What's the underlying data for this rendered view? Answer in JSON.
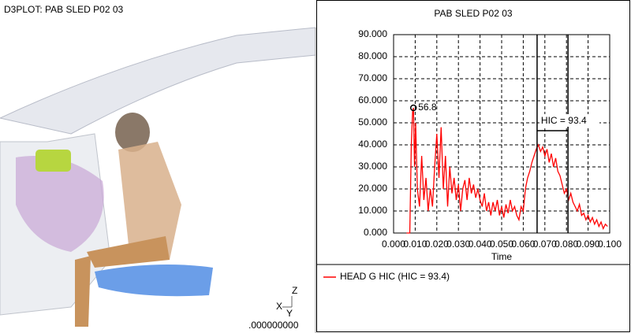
{
  "viewer": {
    "title": "D3PLOT: PAB SLED P02 03",
    "time": ".000000000",
    "axes": [
      "Z",
      "X",
      "Y"
    ]
  },
  "chart_data": {
    "type": "line",
    "title": "PAB SLED P02 03",
    "x_label": "Time",
    "x": [
      0.006,
      0.0075,
      0.0082,
      0.0088,
      0.0092,
      0.0097,
      0.0102,
      0.011,
      0.012,
      0.013,
      0.014,
      0.015,
      0.016,
      0.017,
      0.018,
      0.019,
      0.02,
      0.021,
      0.022,
      0.023,
      0.024,
      0.025,
      0.026,
      0.027,
      0.028,
      0.029,
      0.03,
      0.031,
      0.032,
      0.033,
      0.034,
      0.035,
      0.036,
      0.037,
      0.038,
      0.039,
      0.04,
      0.041,
      0.042,
      0.043,
      0.044,
      0.045,
      0.046,
      0.047,
      0.048,
      0.049,
      0.05,
      0.051,
      0.052,
      0.053,
      0.054,
      0.055,
      0.056,
      0.057,
      0.058,
      0.059,
      0.06,
      0.061,
      0.062,
      0.063,
      0.064,
      0.065,
      0.066,
      0.067,
      0.068,
      0.069,
      0.07,
      0.071,
      0.072,
      0.073,
      0.074,
      0.075,
      0.076,
      0.077,
      0.078,
      0.079,
      0.08,
      0.081,
      0.082,
      0.083,
      0.084,
      0.085,
      0.086,
      0.087,
      0.088,
      0.089,
      0.09,
      0.091,
      0.092,
      0.093,
      0.094,
      0.095,
      0.096,
      0.097,
      0.098,
      0.099
    ],
    "series": [
      {
        "name": "HEAD G HIC (HIC = 93.4)",
        "color": "#ff0000",
        "values": [
          0,
          0,
          40,
          55,
          56.8,
          30,
          50,
          20,
          12,
          35,
          15,
          25,
          10,
          20,
          12,
          30,
          45,
          25,
          48,
          20,
          35,
          12,
          30,
          18,
          25,
          15,
          22,
          10,
          20,
          24,
          15,
          25,
          18,
          22,
          16,
          20,
          15,
          12,
          18,
          10,
          14,
          8,
          14,
          10,
          15,
          8,
          12,
          7,
          13,
          9,
          15,
          10,
          12,
          8,
          6,
          12,
          10,
          20,
          25,
          28,
          32,
          35,
          38,
          40,
          37,
          39,
          35,
          38,
          32,
          36,
          30,
          34,
          28,
          26,
          22,
          18,
          20,
          15,
          18,
          14,
          12,
          10,
          13,
          8,
          9,
          6,
          8,
          5,
          7,
          4,
          6,
          3,
          5,
          2,
          4,
          3
        ]
      }
    ],
    "peak": {
      "x": 0.0092,
      "y": 56.8
    },
    "hic_annotation": "HIC = 93.4",
    "hic_window": [
      0.0664,
      0.0807
    ],
    "xlim": [
      0,
      0.1
    ],
    "ylim": [
      0,
      90
    ],
    "xticks": [
      {
        "value": 0,
        "label": "0.000"
      },
      {
        "value": 0.01,
        "label": "0.010"
      },
      {
        "value": 0.02,
        "label": "0.020"
      },
      {
        "value": 0.03,
        "label": "0.030"
      },
      {
        "value": 0.04,
        "label": "0.040"
      },
      {
        "value": 0.05,
        "label": "0.050"
      },
      {
        "value": 0.06,
        "label": "0.060"
      },
      {
        "value": 0.07,
        "label": "0.070"
      },
      {
        "value": 0.08,
        "label": "0.080"
      },
      {
        "value": 0.09,
        "label": "0.090"
      },
      {
        "value": 0.1,
        "label": "0.100"
      }
    ],
    "yticks": [
      {
        "value": 0,
        "label": "0.000"
      },
      {
        "value": 10,
        "label": "10.000"
      },
      {
        "value": 20,
        "label": "20.000"
      },
      {
        "value": 30,
        "label": "30.000"
      },
      {
        "value": 40,
        "label": "40.000"
      },
      {
        "value": 50,
        "label": "50.000"
      },
      {
        "value": 60,
        "label": "60.000"
      },
      {
        "value": 70,
        "label": "70.000"
      },
      {
        "value": 80,
        "label": "80.000"
      },
      {
        "value": 90,
        "label": "90.000"
      }
    ],
    "grid": true
  }
}
